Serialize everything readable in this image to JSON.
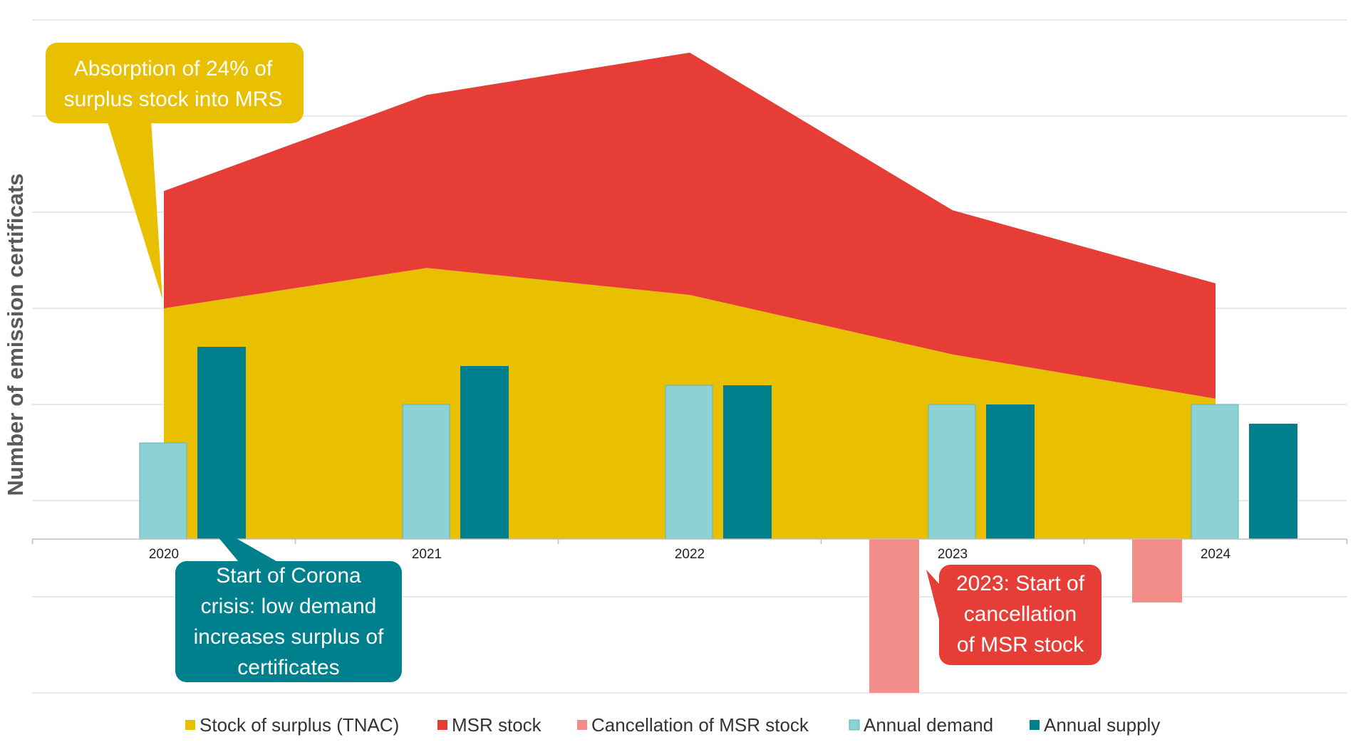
{
  "chart_data": {
    "type": "area+bar",
    "title": "",
    "xlabel": "",
    "ylabel": "Number of emission certificats",
    "categories": [
      "2020",
      "2021",
      "2022",
      "2023",
      "2024"
    ],
    "ylim": [
      -8,
      27
    ],
    "grid": true,
    "legend_position": "bottom",
    "series": [
      {
        "name": "Stock of surplus (TNAC)",
        "kind": "area",
        "values": [
          12.0,
          14.1,
          12.7,
          9.6,
          7.3
        ],
        "color": "#E8C000"
      },
      {
        "name": "MSR stock",
        "kind": "area-stacked",
        "values": [
          6.1,
          9.0,
          12.6,
          7.5,
          6.0
        ],
        "color": "#E63E36"
      },
      {
        "name": "Cancellation of MSR stock",
        "kind": "bar",
        "values": [
          0,
          0,
          0,
          -8.0,
          -3.3
        ],
        "color": "#F28D89"
      },
      {
        "name": "Annual demand",
        "kind": "bar",
        "values": [
          5.0,
          7.0,
          8.0,
          7.0,
          7.0
        ],
        "color": "#8CD1D3"
      },
      {
        "name": "Annual supply",
        "kind": "bar",
        "values": [
          10.0,
          9.0,
          8.0,
          7.0,
          6.0
        ],
        "color": "#00808C"
      }
    ],
    "annotations": [
      {
        "lines": [
          "Absorption of 24% of",
          "surplus stock into MRS"
        ],
        "color": "#E8C000"
      },
      {
        "lines": [
          "Start of Corona",
          "crisis: low demand",
          "increases surplus of",
          "certificates"
        ],
        "color": "#00808C"
      },
      {
        "lines": [
          "2023: Start of",
          "cancellation",
          "of MSR stock"
        ],
        "color": "#E63E36"
      }
    ]
  }
}
